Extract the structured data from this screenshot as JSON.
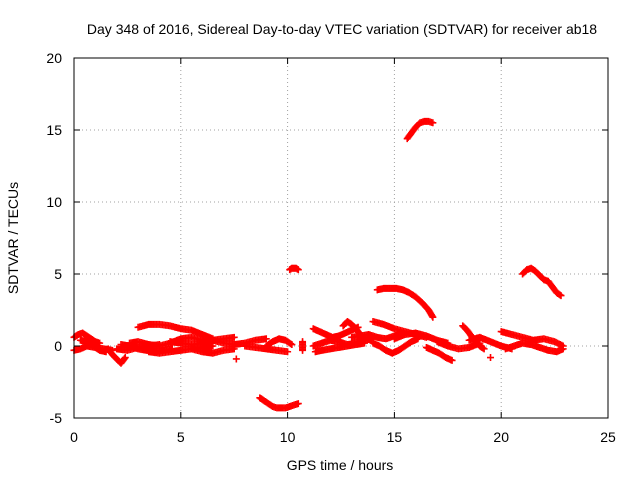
{
  "chart_data": {
    "type": "scatter",
    "title": "Day 348 of 2016, Sidereal Day-to-day VTEC variation (SDTVAR) for receiver ab18",
    "xlabel": "GPS time / hours",
    "ylabel": "SDTVAR / TECUs",
    "xlim": [
      0,
      25
    ],
    "ylim": [
      -5,
      20
    ],
    "xticks": [
      0,
      5,
      10,
      15,
      20,
      25
    ],
    "yticks": [
      -5,
      0,
      5,
      10,
      15,
      20
    ],
    "grid": true,
    "marker": "+",
    "series": [
      {
        "name": "SDTVAR",
        "color": "#ff0000",
        "tracks": [
          {
            "x": [
              0.0,
              0.2,
              0.4,
              0.6,
              0.8,
              1.0,
              1.2
            ],
            "y": [
              0.6,
              0.8,
              0.9,
              0.7,
              0.5,
              0.3,
              0.2
            ]
          },
          {
            "x": [
              0.0,
              0.3,
              0.6,
              1.0,
              1.4,
              1.8
            ],
            "y": [
              -0.3,
              -0.2,
              0.0,
              -0.1,
              -0.2,
              -0.3
            ]
          },
          {
            "x": [
              0.3,
              0.6,
              0.9,
              1.2,
              1.5
            ],
            "y": [
              0.4,
              0.3,
              0.0,
              -0.3,
              -0.4
            ]
          },
          {
            "x": [
              1.6,
              1.8,
              2.0,
              2.2,
              2.4
            ],
            "y": [
              -0.2,
              -0.6,
              -0.9,
              -1.2,
              -0.8
            ]
          },
          {
            "x": [
              2.0,
              2.5,
              3.0,
              3.5,
              4.0
            ],
            "y": [
              -0.2,
              -0.3,
              -0.1,
              0.0,
              0.1
            ]
          },
          {
            "x": [
              2.2,
              2.6,
              3.0,
              3.4,
              3.8,
              4.2,
              4.6
            ],
            "y": [
              0.1,
              0.0,
              -0.2,
              -0.3,
              -0.4,
              -0.3,
              -0.2
            ]
          },
          {
            "x": [
              2.6,
              3.0,
              3.5,
              4.0,
              4.5,
              5.0,
              5.5,
              6.0
            ],
            "y": [
              0.2,
              0.3,
              0.1,
              0.0,
              0.2,
              0.5,
              0.6,
              0.4
            ]
          },
          {
            "x": [
              3.0,
              3.5,
              4.0,
              4.5,
              5.0,
              5.5,
              6.0,
              6.5
            ],
            "y": [
              1.3,
              1.5,
              1.5,
              1.4,
              1.2,
              1.1,
              0.8,
              0.5
            ]
          },
          {
            "x": [
              3.5,
              4.0,
              4.5,
              5.0,
              5.5,
              6.0,
              6.5
            ],
            "y": [
              -0.4,
              -0.5,
              -0.4,
              -0.3,
              -0.2,
              -0.1,
              0.0
            ]
          },
          {
            "x": [
              4.5,
              5.0,
              5.5,
              6.0,
              6.5,
              7.0,
              7.5
            ],
            "y": [
              0.3,
              0.2,
              0.1,
              0.2,
              0.4,
              0.5,
              0.6
            ]
          },
          {
            "x": [
              5.5,
              6.0,
              6.5,
              7.0,
              7.5
            ],
            "y": [
              -0.2,
              -0.4,
              -0.5,
              -0.3,
              -0.2
            ]
          },
          {
            "x": [
              6.0,
              6.5,
              7.0,
              7.5,
              8.0,
              8.5,
              9.0
            ],
            "y": [
              0.3,
              0.4,
              0.2,
              0.1,
              0.2,
              0.4,
              0.5
            ]
          },
          {
            "x": [
              7.6
            ],
            "y": [
              -0.9
            ]
          },
          {
            "x": [
              8.0,
              8.5,
              9.0,
              9.5,
              10.0
            ],
            "y": [
              0.0,
              -0.1,
              -0.2,
              -0.3,
              -0.4
            ]
          },
          {
            "x": [
              9.0,
              9.3,
              9.6,
              9.9,
              10.2
            ],
            "y": [
              0.0,
              0.3,
              0.5,
              0.4,
              0.1
            ]
          },
          {
            "x": [
              8.7,
              8.9,
              9.1,
              9.3,
              9.5,
              9.7,
              9.9,
              10.1,
              10.3,
              10.5
            ],
            "y": [
              -3.6,
              -3.8,
              -4.0,
              -4.2,
              -4.3,
              -4.3,
              -4.3,
              -4.2,
              -4.1,
              -4.0
            ]
          },
          {
            "x": [
              10.1,
              10.2,
              10.3,
              10.4,
              10.5
            ],
            "y": [
              5.3,
              5.4,
              5.4,
              5.4,
              5.3
            ]
          },
          {
            "x": [
              10.7,
              10.7,
              10.7
            ],
            "y": [
              0.3,
              0.0,
              -0.3
            ]
          },
          {
            "x": [
              11.2,
              11.5,
              11.8,
              12.1,
              12.4,
              12.7,
              13.0,
              13.3
            ],
            "y": [
              1.2,
              1.0,
              0.8,
              0.6,
              0.7,
              0.9,
              1.1,
              1.3
            ]
          },
          {
            "x": [
              11.2,
              11.6,
              12.0,
              12.4,
              12.8,
              13.2,
              13.6,
              14.0
            ],
            "y": [
              0.0,
              0.2,
              0.4,
              0.3,
              0.1,
              0.2,
              0.4,
              0.5
            ]
          },
          {
            "x": [
              11.3,
              11.6,
              12.0,
              12.4,
              12.8,
              13.2,
              13.6
            ],
            "y": [
              -0.4,
              -0.3,
              -0.2,
              -0.1,
              0.0,
              0.1,
              0.2
            ]
          },
          {
            "x": [
              12.6,
              12.8,
              13.0,
              13.2,
              13.4,
              13.6
            ],
            "y": [
              1.4,
              1.7,
              1.5,
              1.2,
              0.8,
              0.4
            ]
          },
          {
            "x": [
              13.0,
              13.4,
              13.8,
              14.2,
              14.6,
              15.0,
              15.4
            ],
            "y": [
              0.6,
              0.7,
              0.8,
              0.6,
              0.5,
              0.7,
              0.9
            ]
          },
          {
            "x": [
              14.0,
              14.5,
              15.0,
              15.5,
              16.0,
              16.5
            ],
            "y": [
              1.7,
              1.5,
              1.2,
              1.0,
              0.8,
              0.6
            ]
          },
          {
            "x": [
              14.0,
              14.3,
              14.6,
              14.9,
              15.2,
              15.5,
              15.8,
              16.1
            ],
            "y": [
              0.2,
              0.0,
              -0.3,
              -0.5,
              -0.3,
              0.0,
              0.3,
              0.5
            ]
          },
          {
            "x": [
              14.2,
              14.5,
              14.8,
              15.1,
              15.4,
              15.7,
              16.0,
              16.3,
              16.6,
              16.8
            ],
            "y": [
              3.9,
              4.0,
              4.0,
              4.0,
              3.9,
              3.7,
              3.4,
              3.0,
              2.5,
              2.0
            ]
          },
          {
            "x": [
              15.0,
              15.5,
              16.0,
              16.5,
              17.0,
              17.5
            ],
            "y": [
              0.5,
              0.8,
              0.9,
              0.7,
              0.4,
              0.2
            ]
          },
          {
            "x": [
              15.6,
              15.8,
              16.0,
              16.2,
              16.4,
              16.6,
              16.8
            ],
            "y": [
              14.4,
              14.8,
              15.2,
              15.5,
              15.6,
              15.6,
              15.5
            ]
          },
          {
            "x": [
              16.5,
              16.8,
              17.1,
              17.4,
              17.7
            ],
            "y": [
              -0.1,
              -0.3,
              -0.5,
              -0.8,
              -1.0
            ]
          },
          {
            "x": [
              17.0,
              17.5,
              18.0,
              18.5,
              19.0
            ],
            "y": [
              0.3,
              0.0,
              -0.2,
              -0.1,
              0.2
            ]
          },
          {
            "x": [
              18.2,
              18.4,
              18.6,
              18.8,
              19.0,
              19.2
            ],
            "y": [
              1.4,
              1.1,
              0.7,
              0.3,
              0.0,
              -0.2
            ]
          },
          {
            "x": [
              18.5,
              19.0,
              19.5,
              20.0,
              20.5
            ],
            "y": [
              0.4,
              0.6,
              0.3,
              0.0,
              -0.2
            ]
          },
          {
            "x": [
              19.5
            ],
            "y": [
              -0.8
            ]
          },
          {
            "x": [
              20.0,
              20.5,
              21.0,
              21.5,
              22.0,
              22.5,
              22.9
            ],
            "y": [
              1.0,
              0.8,
              0.6,
              0.4,
              0.5,
              0.3,
              0.0
            ]
          },
          {
            "x": [
              20.2,
              20.6,
              21.0,
              21.4,
              21.8,
              22.2,
              22.6,
              22.9
            ],
            "y": [
              -0.2,
              0.0,
              0.2,
              0.1,
              -0.1,
              -0.3,
              -0.4,
              -0.2
            ]
          },
          {
            "x": [
              21.0,
              21.2,
              21.4,
              21.6,
              21.8,
              22.0,
              22.2,
              22.4,
              22.6,
              22.8
            ],
            "y": [
              5.0,
              5.3,
              5.4,
              5.2,
              4.9,
              4.6,
              4.5,
              4.1,
              3.7,
              3.5
            ]
          }
        ]
      }
    ]
  }
}
